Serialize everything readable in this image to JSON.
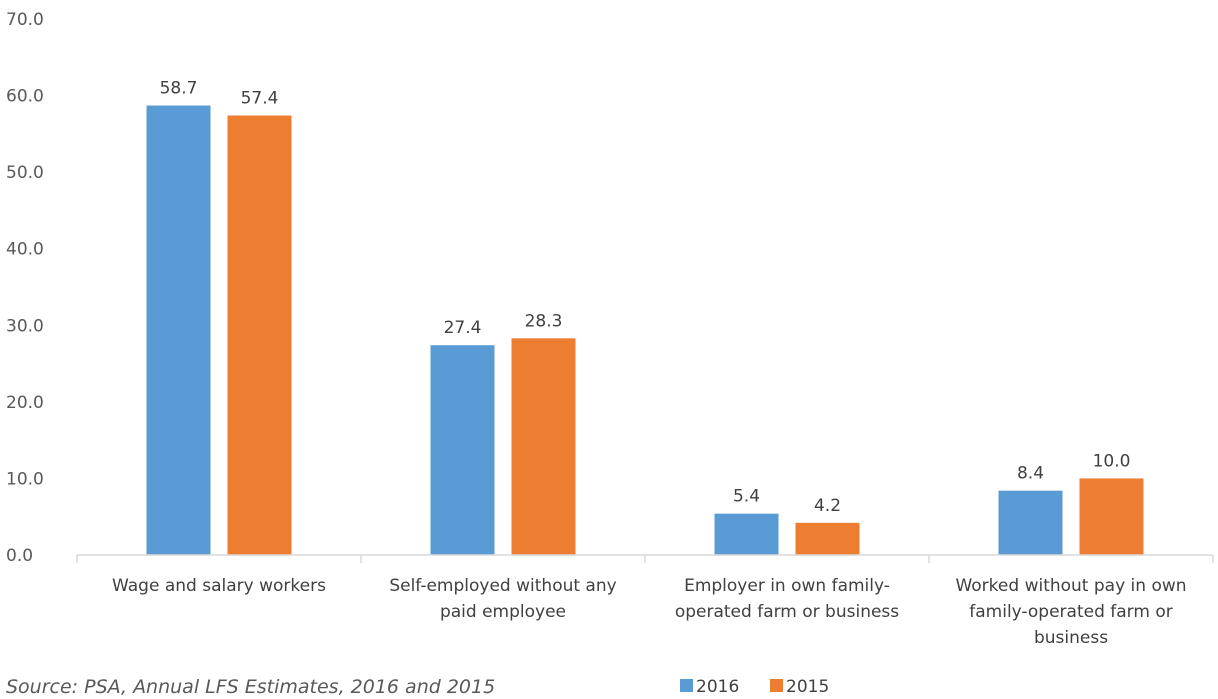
{
  "chart_data": {
    "type": "bar",
    "categories": [
      [
        "Wage and salary workers"
      ],
      [
        "Self-employed without any",
        "paid employee"
      ],
      [
        "Employer in own family-",
        "operated farm or business"
      ],
      [
        "Worked without pay in own",
        "family-operated farm or",
        "business"
      ]
    ],
    "series": [
      {
        "name": "2016",
        "color": "#5B9BD5",
        "values": [
          58.7,
          27.4,
          5.4,
          8.4
        ]
      },
      {
        "name": "2015",
        "color": "#ED7D31",
        "values": [
          57.4,
          28.3,
          4.2,
          10.0
        ]
      }
    ],
    "ylim": [
      0,
      70
    ],
    "yticks": [
      "0.0",
      "10.0",
      "20.0",
      "30.0",
      "40.0",
      "50.0",
      "60.0",
      "70.0"
    ],
    "data_labels": true,
    "legend_position": "bottom",
    "grid": false,
    "source": "Source: PSA, Annual LFS Estimates, 2016 and 2015"
  }
}
